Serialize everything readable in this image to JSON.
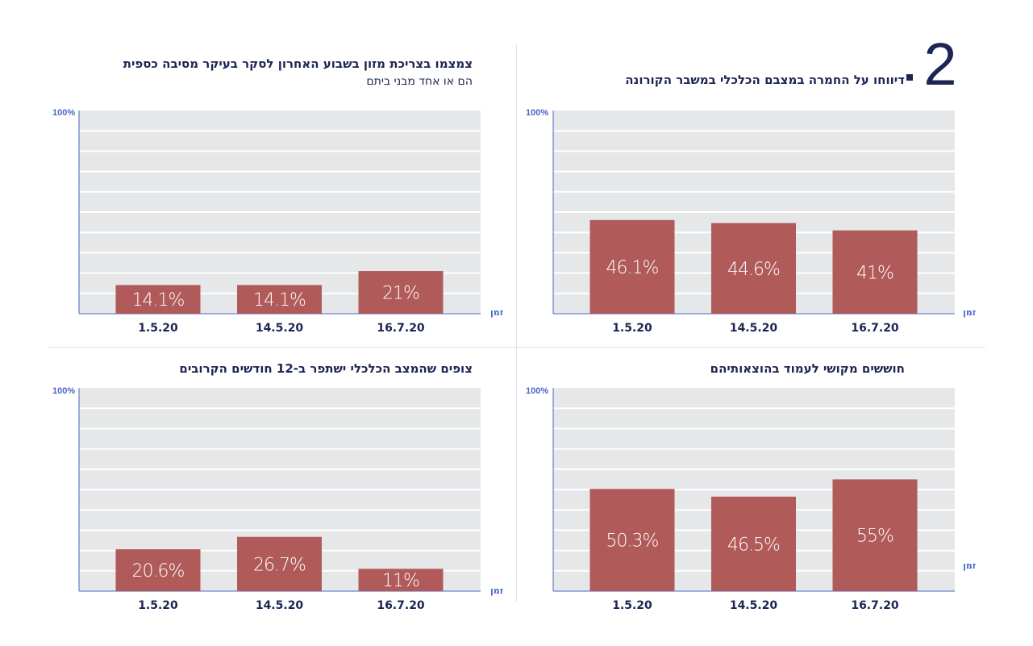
{
  "section": {
    "number": "2"
  },
  "colors": {
    "bar": "#b05a5a",
    "grid_bg": "#e6e7e9",
    "grid_line": "#ffffff",
    "axis": "#4a66c8",
    "text": "#1c2553"
  },
  "chart_data": [
    {
      "type": "bar",
      "title": "דיווחו על החמרה במצבם הכלכלי במשבר הקורונה",
      "subtitle": "",
      "xlabel": "זמן",
      "ylabel": "",
      "y_max_label": "100%",
      "ylim": [
        0,
        100
      ],
      "grid": true,
      "categories": [
        "1.5.20",
        "14.5.20",
        "16.7.20"
      ],
      "values": [
        46.1,
        44.6,
        41
      ],
      "value_labels": [
        "46.1%",
        "44.6%",
        "41%"
      ]
    },
    {
      "type": "bar",
      "title": "צמצמו בצריכת מזון בשבוע האחרון לסקר בעיקר מסיבה כספית",
      "subtitle": "הם או אחד מבני ביתם",
      "xlabel": "זמן",
      "ylabel": "",
      "y_max_label": "100%",
      "ylim": [
        0,
        100
      ],
      "grid": true,
      "categories": [
        "1.5.20",
        "14.5.20",
        "16.7.20"
      ],
      "values": [
        14.1,
        14.1,
        21
      ],
      "value_labels": [
        "14.1%",
        "14.1%",
        "21%"
      ]
    },
    {
      "type": "bar",
      "title": "חוששים מקושי לעמוד בהוצאותיהם",
      "subtitle": "",
      "xlabel": "זמן",
      "ylabel": "",
      "y_max_label": "100%",
      "ylim": [
        0,
        100
      ],
      "grid": true,
      "categories": [
        "1.5.20",
        "14.5.20",
        "16.7.20"
      ],
      "values": [
        50.3,
        46.5,
        55
      ],
      "value_labels": [
        "50.3%",
        "46.5%",
        "55%"
      ]
    },
    {
      "type": "bar",
      "title": "צופים שהמצב הכלכלי ישתפר ב-12 חודשים הקרובים",
      "subtitle": "",
      "xlabel": "זמן",
      "ylabel": "",
      "y_max_label": "100%",
      "ylim": [
        0,
        100
      ],
      "grid": true,
      "categories": [
        "1.5.20",
        "14.5.20",
        "16.7.20"
      ],
      "values": [
        20.6,
        26.7,
        11
      ],
      "value_labels": [
        "20.6%",
        "26.7%",
        "11%"
      ]
    }
  ]
}
